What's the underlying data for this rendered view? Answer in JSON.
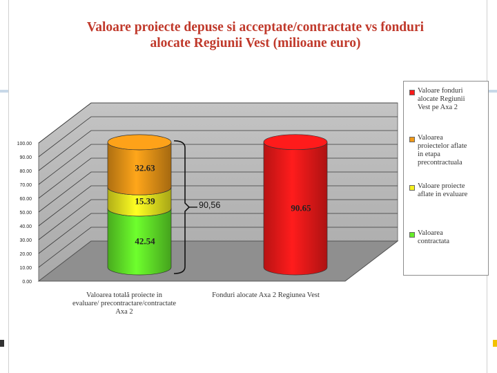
{
  "chart_data": {
    "type": "bar",
    "title": "Valoare proiecte depuse si acceptate/contractate vs fonduri alocate Regiunii Vest (milioane euro)",
    "title_lines": [
      "Valoare proiecte depuse si acceptate/contractate vs fonduri",
      "alocate Regiunii Vest (milioane euro)"
    ],
    "categories": [
      "Valoarea totală proiecte in evaluare/ precontractare/contractate Axa 2",
      "Fonduri alocate Axa 2 Regiunea Vest"
    ],
    "category_lines": [
      [
        "Valoarea totală proiecte in",
        "evaluare/ precontractare/contractate",
        "Axa 2"
      ],
      [
        "Fonduri alocate Axa 2 Regiunea Vest"
      ]
    ],
    "series": [
      {
        "name": "Valoarea contractata",
        "values": [
          42.54,
          null
        ],
        "color": "#66ee2a",
        "label_values": [
          "42.54",
          ""
        ]
      },
      {
        "name": "Valoare proiecte aflate in evaluare",
        "values": [
          15.39,
          null
        ],
        "color": "#f6f220",
        "label_values": [
          "15.39",
          ""
        ]
      },
      {
        "name": "Valoarea proiectelor aflate in etapa precontractuala",
        "values": [
          32.63,
          null
        ],
        "color": "#f29a18",
        "label_values": [
          "32.63",
          ""
        ]
      },
      {
        "name": "Valoare fonduri alocate Regiunii Vest pe Axa 2",
        "values": [
          null,
          90.65
        ],
        "color": "#ff1a1a",
        "label_values": [
          "",
          "90.65"
        ]
      }
    ],
    "stacked": true,
    "three_d": true,
    "bar_shape": "cylinder",
    "ylim": [
      0,
      100
    ],
    "yticks": [
      "0.00",
      "10.00",
      "20.00",
      "30.00",
      "40.00",
      "50.00",
      "60.00",
      "70.00",
      "80.00",
      "90.00",
      "100.00"
    ],
    "grid": true,
    "legend_position": "right",
    "legend": [
      {
        "label": "Valoare fonduri alocate Regiunii Vest pe Axa 2",
        "lines": [
          "Valoare fonduri",
          "alocate Regiunii",
          "Vest pe Axa 2"
        ],
        "color": "#ff1a1a"
      },
      {
        "label": "Valoarea proiectelor aflate in etapa precontractuala",
        "lines": [
          "Valoarea",
          "proiectelor aflate",
          "in etapa",
          "precontractuala"
        ],
        "color": "#f29a18"
      },
      {
        "label": "Valoare proiecte aflate in evaluare",
        "lines": [
          "Valoare proiecte",
          "aflate in evaluare"
        ],
        "color": "#f6f220"
      },
      {
        "label": "Valoarea contractata",
        "lines": [
          "Valoarea",
          "contractata"
        ],
        "color": "#66ee2a"
      }
    ],
    "annotations": [
      {
        "text": "90,56",
        "type": "bracket",
        "category": 0,
        "from": 0,
        "to": 90.56
      }
    ],
    "colors": {
      "title": "#c0392b",
      "wall": "#b3b3b3",
      "grid": "#3a3a3a",
      "floor": "#8f8f8f"
    }
  }
}
